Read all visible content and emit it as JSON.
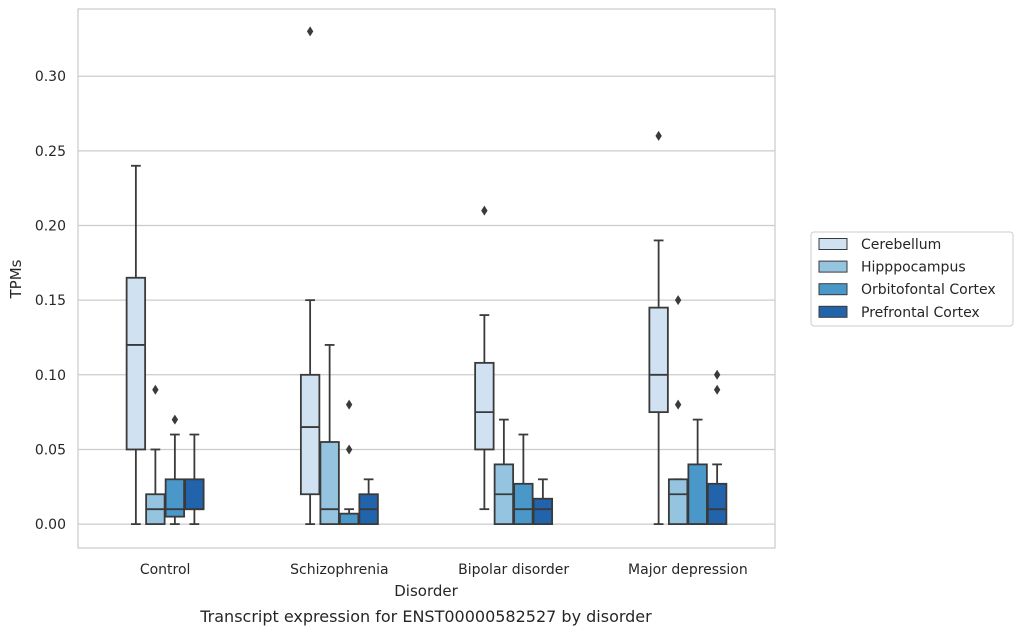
{
  "chart_data": {
    "type": "boxplot",
    "title": "",
    "caption": "Transcript expression for ENST00000582527 by disorder",
    "xlabel": "Disorder",
    "ylabel": "TPMs",
    "ylim": [
      -0.016,
      0.345
    ],
    "yticks": [
      0.0,
      0.05,
      0.1,
      0.15,
      0.2,
      0.25,
      0.3
    ],
    "ytick_labels": [
      "0.00",
      "0.05",
      "0.10",
      "0.15",
      "0.20",
      "0.25",
      "0.30"
    ],
    "grid": "horizontal",
    "legend_position": "right",
    "categories": [
      "Control",
      "Schizophrenia",
      "Bipolar disorder",
      "Major depression"
    ],
    "series": [
      {
        "name": "Cerebellum",
        "color": "#d0e1f2",
        "boxes": [
          {
            "whisker_low": 0.0,
            "q1": 0.05,
            "median": 0.12,
            "q3": 0.165,
            "whisker_high": 0.24,
            "outliers": []
          },
          {
            "whisker_low": 0.0,
            "q1": 0.02,
            "median": 0.065,
            "q3": 0.1,
            "whisker_high": 0.15,
            "outliers": [
              0.33
            ]
          },
          {
            "whisker_low": 0.01,
            "q1": 0.05,
            "median": 0.075,
            "q3": 0.108,
            "whisker_high": 0.14,
            "outliers": [
              0.21
            ]
          },
          {
            "whisker_low": 0.0,
            "q1": 0.075,
            "median": 0.1,
            "q3": 0.145,
            "whisker_high": 0.19,
            "outliers": [
              0.26
            ]
          }
        ]
      },
      {
        "name": "Hipppocampus",
        "color": "#94c4df",
        "boxes": [
          {
            "whisker_low": 0.0,
            "q1": 0.0,
            "median": 0.01,
            "q3": 0.02,
            "whisker_high": 0.05,
            "outliers": [
              0.09
            ]
          },
          {
            "whisker_low": 0.0,
            "q1": 0.0,
            "median": 0.01,
            "q3": 0.055,
            "whisker_high": 0.12,
            "outliers": []
          },
          {
            "whisker_low": 0.0,
            "q1": 0.0,
            "median": 0.02,
            "q3": 0.04,
            "whisker_high": 0.07,
            "outliers": []
          },
          {
            "whisker_low": 0.0,
            "q1": 0.0,
            "median": 0.02,
            "q3": 0.03,
            "whisker_high": 0.03,
            "outliers": [
              0.15,
              0.08
            ]
          }
        ]
      },
      {
        "name": "Orbitofontal Cortex",
        "color": "#4a98c9",
        "boxes": [
          {
            "whisker_low": 0.0,
            "q1": 0.005,
            "median": 0.01,
            "q3": 0.03,
            "whisker_high": 0.06,
            "outliers": [
              0.07
            ]
          },
          {
            "whisker_low": 0.0,
            "q1": 0.0,
            "median": 0.0,
            "q3": 0.007,
            "whisker_high": 0.01,
            "outliers": [
              0.08,
              0.05
            ]
          },
          {
            "whisker_low": 0.0,
            "q1": 0.0,
            "median": 0.01,
            "q3": 0.027,
            "whisker_high": 0.06,
            "outliers": []
          },
          {
            "whisker_low": 0.0,
            "q1": 0.0,
            "median": 0.0,
            "q3": 0.04,
            "whisker_high": 0.07,
            "outliers": []
          }
        ]
      },
      {
        "name": "Prefrontal Cortex",
        "color": "#2164ab",
        "boxes": [
          {
            "whisker_low": 0.0,
            "q1": 0.01,
            "median": 0.01,
            "q3": 0.03,
            "whisker_high": 0.06,
            "outliers": []
          },
          {
            "whisker_low": 0.0,
            "q1": 0.0,
            "median": 0.01,
            "q3": 0.02,
            "whisker_high": 0.03,
            "outliers": []
          },
          {
            "whisker_low": 0.0,
            "q1": 0.0,
            "median": 0.01,
            "q3": 0.017,
            "whisker_high": 0.03,
            "outliers": []
          },
          {
            "whisker_low": 0.0,
            "q1": 0.0,
            "median": 0.01,
            "q3": 0.027,
            "whisker_high": 0.04,
            "outliers": [
              0.1,
              0.09
            ]
          }
        ]
      }
    ]
  }
}
